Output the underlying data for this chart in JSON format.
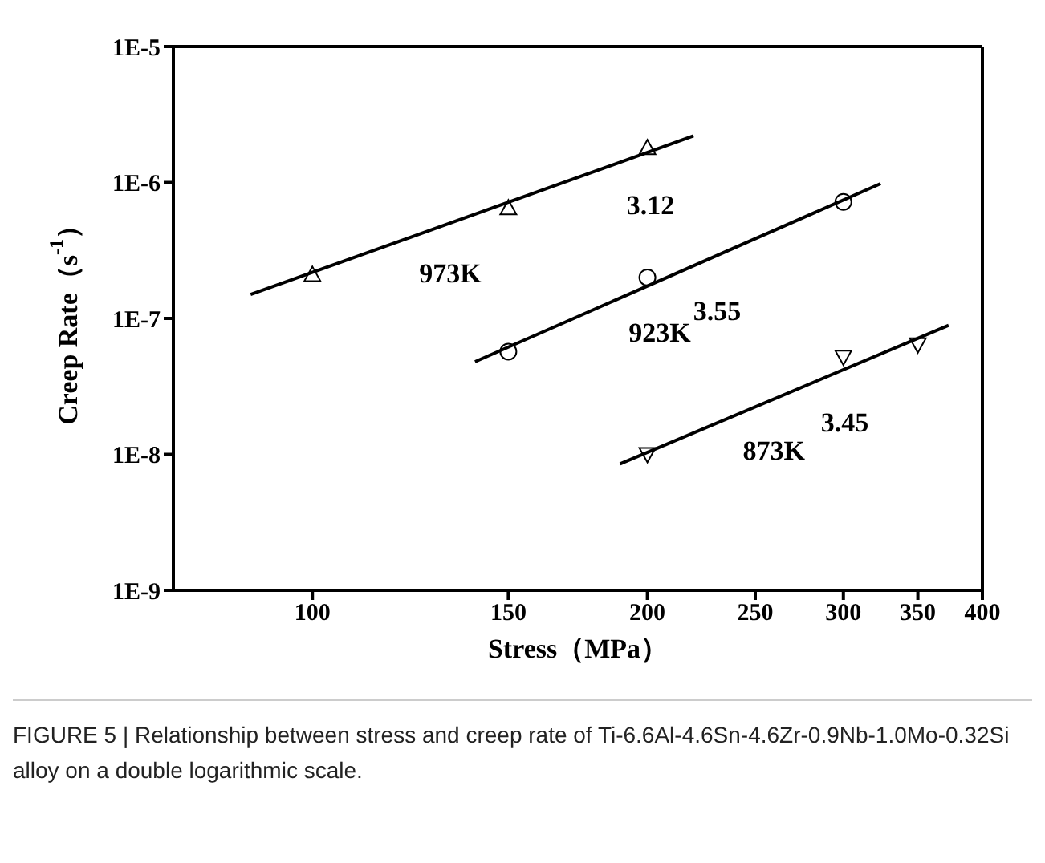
{
  "chart_data": {
    "type": "scatter",
    "xlabel": "Stress（MPa）",
    "ylabel": "Creep Rate（s$^{-1}$）",
    "log": "xy",
    "grid": false,
    "legend": false,
    "xlim": [
      75,
      400
    ],
    "xticks": [
      100,
      150,
      200,
      250,
      300,
      350,
      400
    ],
    "ylim": [
      1e-09,
      1e-05
    ],
    "yticks": [
      {
        "value": 1e-09,
        "label": "1E-9"
      },
      {
        "value": 1e-08,
        "label": "1E-8"
      },
      {
        "value": 1e-07,
        "label": "1E-7"
      },
      {
        "value": 1e-06,
        "label": "1E-6"
      },
      {
        "value": 1e-05,
        "label": "1E-5"
      }
    ],
    "series": [
      {
        "type": "scatter",
        "marker": "triangle",
        "color": "#000000",
        "x": [
          100,
          150,
          200
        ],
        "values": [
          2.1e-07,
          6.5e-07,
          1.8e-06
        ]
      },
      {
        "type": "scatter",
        "marker": "circle",
        "color": "#000000",
        "x": [
          150,
          200,
          300
        ],
        "values": [
          5.7e-08,
          2e-07,
          7.2e-07
        ]
      },
      {
        "type": "scatter",
        "marker": "triangle-down",
        "color": "#000000",
        "x": [
          200,
          300,
          350
        ],
        "values": [
          1e-08,
          5.2e-08,
          6.4e-08
        ]
      },
      {
        "name": "973K",
        "type": "line",
        "marker": "none",
        "color": "#000000",
        "x": [
          88,
          220
        ],
        "values": [
          1.5e-07,
          2.2e-06
        ]
      },
      {
        "name": "923K",
        "type": "line",
        "marker": "none",
        "color": "#000000",
        "x": [
          140,
          324
        ],
        "values": [
          4.8e-08,
          9.8e-07
        ]
      },
      {
        "name": "873K",
        "type": "line",
        "marker": "none",
        "color": "#000000",
        "x": [
          189,
          373
        ],
        "values": [
          8.5e-09,
          8.9e-08
        ]
      }
    ],
    "annotations": [
      {
        "text": "3.12",
        "x": 196,
        "y": 1.55e-06
      },
      {
        "text": "3.55",
        "x": 225,
        "y": 2.6e-07
      },
      {
        "text": "3.45",
        "x": 293,
        "y": 3.9e-08
      },
      "FIGURE 5 | Relationship between stress and creep rate of Ti-6.6Al-4.6Sn-4.6Zr-0.9Nb-1.0Mo-0.32Si alloy on a double logarithmic scale."
    ]
  }
}
